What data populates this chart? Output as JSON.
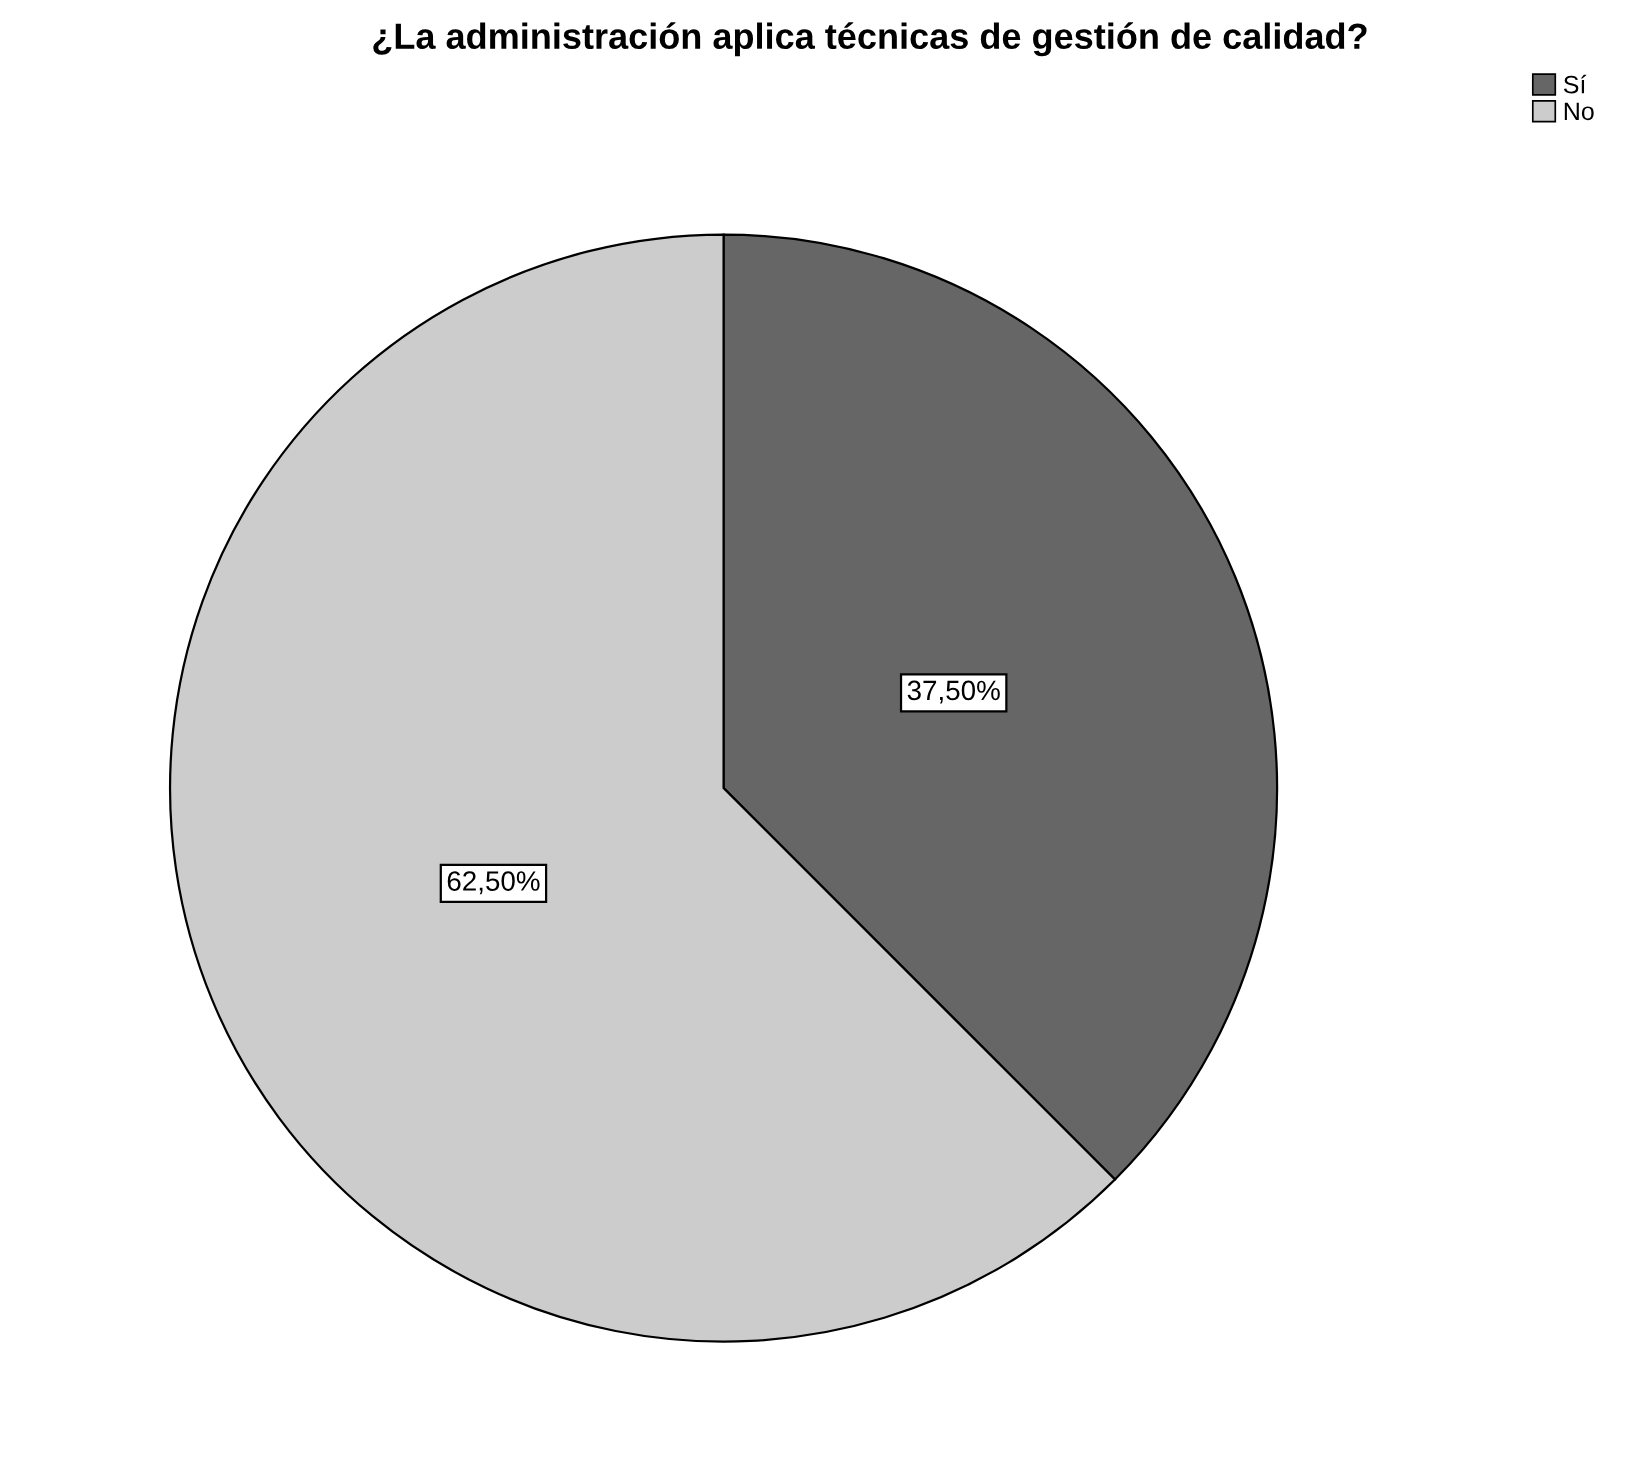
{
  "chart_data": {
    "type": "pie",
    "title": "¿La administración aplica técnicas de gestión de calidad?",
    "categories": [
      "Sí",
      "No"
    ],
    "values": [
      37.5,
      62.5
    ],
    "colors": [
      "#666666",
      "#cccccc"
    ],
    "value_labels": [
      "37,50%",
      "62,50%"
    ],
    "legend": "top right"
  }
}
